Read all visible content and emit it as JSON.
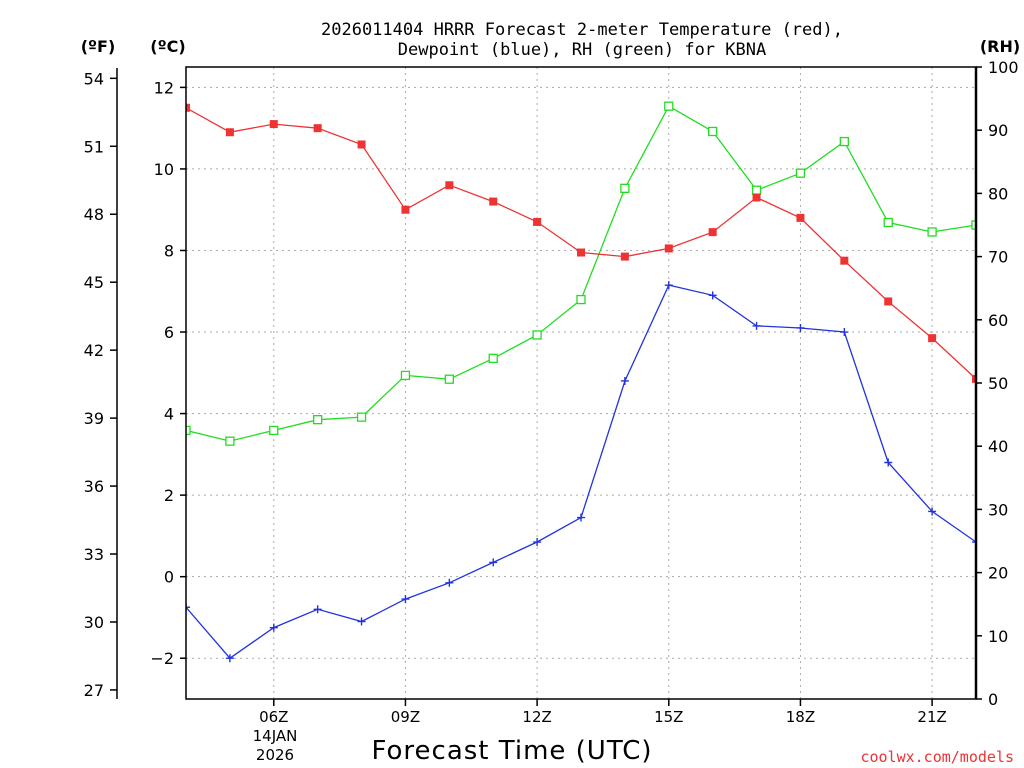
{
  "chart_data": {
    "type": "line",
    "title_line1": "2026011404 HRRR Forecast 2-meter Temperature (red),",
    "title_line2": "Dewpoint (blue), RH (green) for KBNA",
    "xlabel": "Forecast Time (UTC)",
    "unit_f": "(ºF)",
    "unit_c": "(ºC)",
    "unit_rh": "(RH)",
    "date_line1": "14JAN",
    "date_line2": "2026",
    "credit": "coolwx.com/models",
    "colors": {
      "temperature": "#ee3333",
      "dewpoint": "#2233dd",
      "rh": "#22dd22",
      "grid": "#aaaaaa"
    },
    "xlim": [
      4,
      22
    ],
    "x_ticks": [
      {
        "hour": 6,
        "label": "06Z"
      },
      {
        "hour": 9,
        "label": "09Z"
      },
      {
        "hour": 12,
        "label": "12Z"
      },
      {
        "hour": 15,
        "label": "15Z"
      },
      {
        "hour": 18,
        "label": "18Z"
      },
      {
        "hour": 21,
        "label": "21Z"
      }
    ],
    "celsius_axis": {
      "ylim": [
        -3,
        12.5
      ],
      "ticks": [
        -2,
        0,
        2,
        4,
        6,
        8,
        10,
        12
      ],
      "labels": [
        "−2",
        "0",
        "2",
        "4",
        "6",
        "8",
        "10",
        "12"
      ]
    },
    "fahrenheit_axis": {
      "ticks": [
        27,
        30,
        33,
        36,
        39,
        42,
        45,
        48,
        51,
        54
      ],
      "labels": [
        "27",
        "30",
        "33",
        "36",
        "39",
        "42",
        "45",
        "48",
        "51",
        "54"
      ]
    },
    "rh_axis": {
      "ylim": [
        0,
        100
      ],
      "ticks": [
        0,
        10,
        20,
        30,
        40,
        50,
        60,
        70,
        80,
        90,
        100
      ],
      "labels": [
        "0",
        "10",
        "20",
        "30",
        "40",
        "50",
        "60",
        "70",
        "80",
        "90",
        "100"
      ]
    },
    "series": [
      {
        "name": "2-meter Temperature",
        "key": "temperature",
        "units": "C",
        "marker": "filled-square",
        "x": [
          4,
          5,
          6,
          7,
          8,
          9,
          10,
          11,
          12,
          13,
          14,
          15,
          16,
          17,
          18,
          19,
          20,
          21,
          22
        ],
        "values": [
          11.5,
          10.9,
          11.1,
          11.0,
          10.6,
          9.0,
          9.6,
          9.2,
          8.7,
          7.95,
          7.85,
          8.05,
          8.45,
          9.3,
          8.8,
          7.75,
          6.75,
          5.85,
          4.85
        ]
      },
      {
        "name": "Dewpoint",
        "key": "dewpoint",
        "units": "C",
        "marker": "plus",
        "x": [
          4,
          5,
          6,
          7,
          8,
          9,
          10,
          11,
          12,
          13,
          14,
          15,
          16,
          17,
          18,
          19,
          20,
          21,
          22
        ],
        "values": [
          -0.75,
          -2.0,
          -1.25,
          -0.8,
          -1.1,
          -0.55,
          -0.15,
          0.35,
          0.85,
          1.45,
          4.8,
          7.15,
          6.9,
          6.15,
          6.1,
          6.0,
          2.8,
          1.6,
          0.85
        ]
      },
      {
        "name": "RH",
        "key": "rh",
        "units": "%",
        "marker": "open-square",
        "x": [
          4,
          5,
          6,
          7,
          8,
          9,
          10,
          11,
          12,
          13,
          14,
          15,
          16,
          17,
          18,
          19,
          20,
          21,
          22
        ],
        "values": [
          42.5,
          40.8,
          42.5,
          44.2,
          44.6,
          51.2,
          50.6,
          53.9,
          57.6,
          63.2,
          80.8,
          93.8,
          89.8,
          80.5,
          83.2,
          88.2,
          75.4,
          73.9,
          75.0
        ]
      }
    ]
  }
}
